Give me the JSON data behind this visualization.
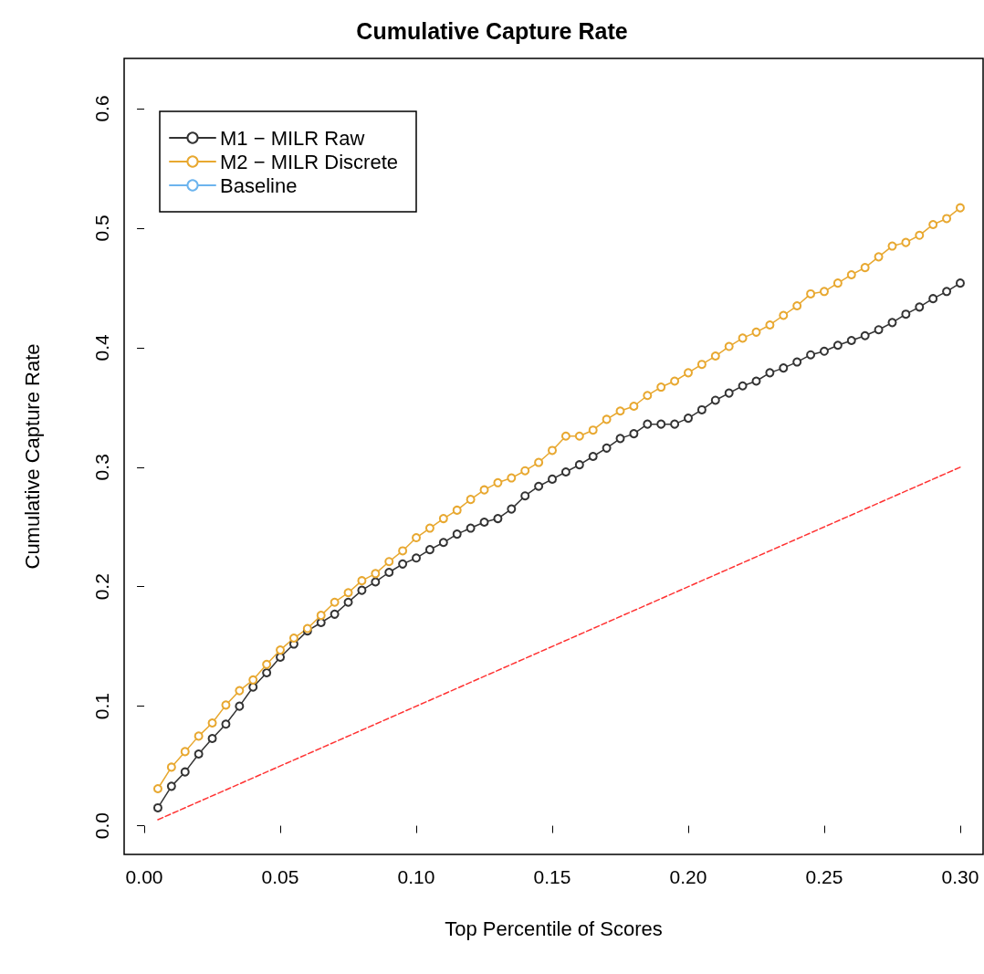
{
  "chart_data": {
    "type": "line",
    "title": "Cumulative Capture Rate",
    "xlabel": "Top Percentile of Scores",
    "ylabel": "Cumulative Capture Rate",
    "x": [
      0.005,
      0.01,
      0.015,
      0.02,
      0.025,
      0.03,
      0.035,
      0.04,
      0.045,
      0.05,
      0.055,
      0.06,
      0.065,
      0.07,
      0.075,
      0.08,
      0.085,
      0.09,
      0.095,
      0.1,
      0.105,
      0.11,
      0.115,
      0.12,
      0.125,
      0.13,
      0.135,
      0.14,
      0.145,
      0.15,
      0.155,
      0.16,
      0.165,
      0.17,
      0.175,
      0.18,
      0.185,
      0.19,
      0.195,
      0.2,
      0.205,
      0.21,
      0.215,
      0.22,
      0.225,
      0.23,
      0.235,
      0.24,
      0.245,
      0.25,
      0.255,
      0.26,
      0.265,
      0.27,
      0.275,
      0.28,
      0.285,
      0.29,
      0.295,
      0.3
    ],
    "series": [
      {
        "name": "M1 − MILR Raw",
        "color": "#333333",
        "marker": "circle",
        "values": [
          0.015,
          0.033,
          0.045,
          0.06,
          0.073,
          0.085,
          0.1,
          0.116,
          0.128,
          0.141,
          0.152,
          0.163,
          0.17,
          0.177,
          0.187,
          0.197,
          0.204,
          0.212,
          0.219,
          0.224,
          0.231,
          0.237,
          0.244,
          0.249,
          0.254,
          0.257,
          0.265,
          0.276,
          0.284,
          0.29,
          0.296,
          0.302,
          0.309,
          0.316,
          0.324,
          0.328,
          0.336,
          0.336,
          0.336,
          0.341,
          0.348,
          0.356,
          0.362,
          0.368,
          0.372,
          0.379,
          0.383,
          0.388,
          0.394,
          0.397,
          0.402,
          0.406,
          0.41,
          0.415,
          0.421,
          0.428,
          0.434,
          0.441,
          0.447,
          0.454
        ]
      },
      {
        "name": "M2 − MILR Discrete",
        "color": "#e8a830",
        "marker": "circle",
        "values": [
          0.031,
          0.049,
          0.062,
          0.075,
          0.086,
          0.101,
          0.113,
          0.122,
          0.135,
          0.147,
          0.157,
          0.165,
          0.176,
          0.187,
          0.195,
          0.205,
          0.211,
          0.221,
          0.23,
          0.241,
          0.249,
          0.257,
          0.264,
          0.273,
          0.281,
          0.287,
          0.291,
          0.297,
          0.304,
          0.314,
          0.326,
          0.326,
          0.331,
          0.34,
          0.347,
          0.351,
          0.36,
          0.367,
          0.372,
          0.379,
          0.386,
          0.393,
          0.401,
          0.408,
          0.413,
          0.419,
          0.427,
          0.435,
          0.445,
          0.447,
          0.454,
          0.461,
          0.467,
          0.476,
          0.485,
          0.488,
          0.494,
          0.503,
          0.508,
          0.517
        ]
      },
      {
        "name": "Baseline",
        "color": "#6cb4ee",
        "marker": "circle",
        "values": [
          null,
          null,
          null,
          null,
          null,
          null,
          null,
          null,
          null,
          null,
          null,
          null,
          null,
          null,
          null,
          null,
          null,
          null,
          null,
          null,
          null,
          null,
          null,
          null,
          null,
          null,
          null,
          null,
          null,
          null,
          null,
          null,
          null,
          null,
          null,
          null,
          null,
          null,
          null,
          null,
          null,
          null,
          null,
          null,
          null,
          null,
          null,
          null,
          null,
          null,
          null,
          null,
          null,
          null,
          null,
          null,
          null,
          null,
          null,
          null
        ]
      },
      {
        "color": "#ff3333",
        "marker": "none",
        "line_style": "dashed",
        "x": [
          0.005,
          0.3
        ],
        "values": [
          0.005,
          0.3
        ]
      }
    ],
    "xlim": [
      -0.0074,
      0.3084
    ],
    "ylim": [
      -0.024,
      0.642
    ],
    "xticks": [
      {
        "value": 0,
        "label": "0.00"
      },
      {
        "value": 0.05,
        "label": "0.05"
      },
      {
        "value": 0.1,
        "label": "0.10"
      },
      {
        "value": 0.15,
        "label": "0.15"
      },
      {
        "value": 0.2,
        "label": "0.20"
      },
      {
        "value": 0.25,
        "label": "0.25"
      },
      {
        "value": 0.3,
        "label": "0.30"
      }
    ],
    "yticks": [
      {
        "value": 0,
        "label": "0.0"
      },
      {
        "value": 0.1,
        "label": "0.1"
      },
      {
        "value": 0.2,
        "label": "0.2"
      },
      {
        "value": 0.3,
        "label": "0.3"
      },
      {
        "value": 0.4,
        "label": "0.4"
      },
      {
        "value": 0.5,
        "label": "0.5"
      },
      {
        "value": 0.6,
        "label": "0.6"
      }
    ],
    "grid": false,
    "legend": "top left"
  }
}
